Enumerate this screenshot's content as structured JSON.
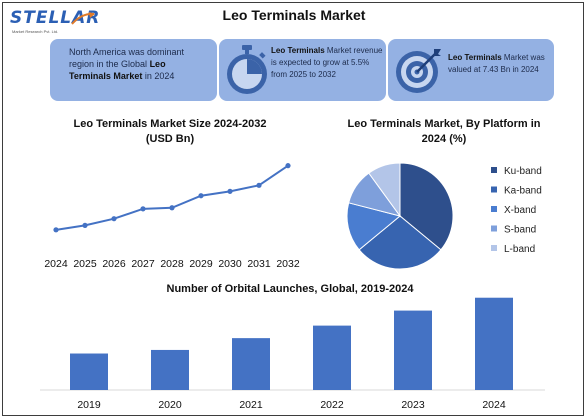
{
  "logo": {
    "text": "STELLAR",
    "tagline": "Market Research Pvt. Ltd."
  },
  "title": "Leo Terminals Market",
  "cards": [
    {
      "pre": "North America was dominant region in the Global ",
      "bold": "Leo Terminals Market",
      "post": " in 2024",
      "icon": "none"
    },
    {
      "pre": "",
      "bold": "Leo Terminals",
      "post": " Market revenue is expected to grow at 5.5% from 2025 to 2032",
      "icon": "stopwatch-icon"
    },
    {
      "pre": "",
      "bold": "Leo Terminals",
      "post": " Market was valued at 7.43 Bn in 2024",
      "icon": "target-icon"
    }
  ],
  "colors": {
    "accent": "#4472c4",
    "card": "#94b1e3",
    "frame": "#3d3d3d"
  },
  "chart_data": [
    {
      "type": "line",
      "title": "Leo Terminals Market Size 2024-2032",
      "subtitle": "(USD Bn)",
      "x": [
        "2024",
        "2025",
        "2026",
        "2027",
        "2028",
        "2029",
        "2030",
        "2031",
        "2032"
      ],
      "values": [
        7.43,
        7.84,
        8.45,
        9.35,
        9.45,
        10.55,
        10.95,
        11.5,
        13.3
      ],
      "ylim": [
        6.5,
        14
      ],
      "grid": false,
      "color": "#4472c4"
    },
    {
      "type": "pie",
      "title": "Leo Terminals Market, By Platform in 2024 (%)",
      "categories": [
        "Ku-band",
        "Ka-band",
        "X-band",
        "S-band",
        "L-band"
      ],
      "values": [
        36,
        28,
        15,
        11,
        10
      ],
      "colors": [
        "#2e4f8c",
        "#3764b0",
        "#4a7dd0",
        "#7e9fdb",
        "#b3c5e8"
      ],
      "legend": "right"
    },
    {
      "type": "bar",
      "title": "Number of Orbital Launches, Global, 2019-2024",
      "categories": [
        "2019",
        "2020",
        "2021",
        "2022",
        "2023",
        "2024"
      ],
      "values": [
        102,
        112,
        145,
        180,
        222,
        258
      ],
      "ylim": [
        0,
        260
      ],
      "grid": false,
      "color": "#4472c4"
    }
  ]
}
